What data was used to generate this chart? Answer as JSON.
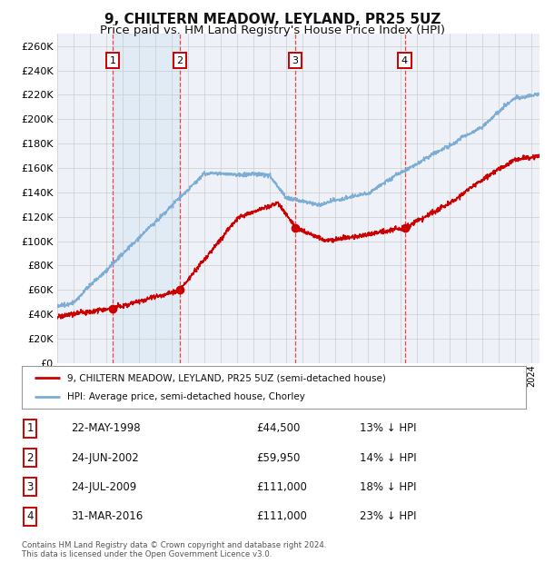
{
  "title": "9, CHILTERN MEADOW, LEYLAND, PR25 5UZ",
  "subtitle": "Price paid vs. HM Land Registry's House Price Index (HPI)",
  "ylim": [
    0,
    270000
  ],
  "yticks": [
    0,
    20000,
    40000,
    60000,
    80000,
    100000,
    120000,
    140000,
    160000,
    180000,
    200000,
    220000,
    240000,
    260000
  ],
  "xlim_start": 1995.0,
  "xlim_end": 2024.5,
  "sale_dates": [
    1998.38,
    2002.48,
    2009.56,
    2016.25
  ],
  "sale_prices": [
    44500,
    59950,
    111000,
    111000
  ],
  "sale_labels": [
    "1",
    "2",
    "3",
    "4"
  ],
  "sale_color": "#cc0000",
  "hpi_color": "#7dadd4",
  "grid_color": "#cccccc",
  "vline_color": "#ee3333",
  "background_color": "#ffffff",
  "plot_bg_color": "#eef2f8",
  "legend_entry1": "9, CHILTERN MEADOW, LEYLAND, PR25 5UZ (semi-detached house)",
  "legend_entry2": "HPI: Average price, semi-detached house, Chorley",
  "table_rows": [
    [
      "1",
      "22-MAY-1998",
      "£44,500",
      "13% ↓ HPI"
    ],
    [
      "2",
      "24-JUN-2002",
      "£59,950",
      "14% ↓ HPI"
    ],
    [
      "3",
      "24-JUL-2009",
      "£111,000",
      "18% ↓ HPI"
    ],
    [
      "4",
      "31-MAR-2016",
      "£111,000",
      "23% ↓ HPI"
    ]
  ],
  "footnote": "Contains HM Land Registry data © Crown copyright and database right 2024.\nThis data is licensed under the Open Government Licence v3.0.",
  "title_fontsize": 11,
  "subtitle_fontsize": 9.5
}
